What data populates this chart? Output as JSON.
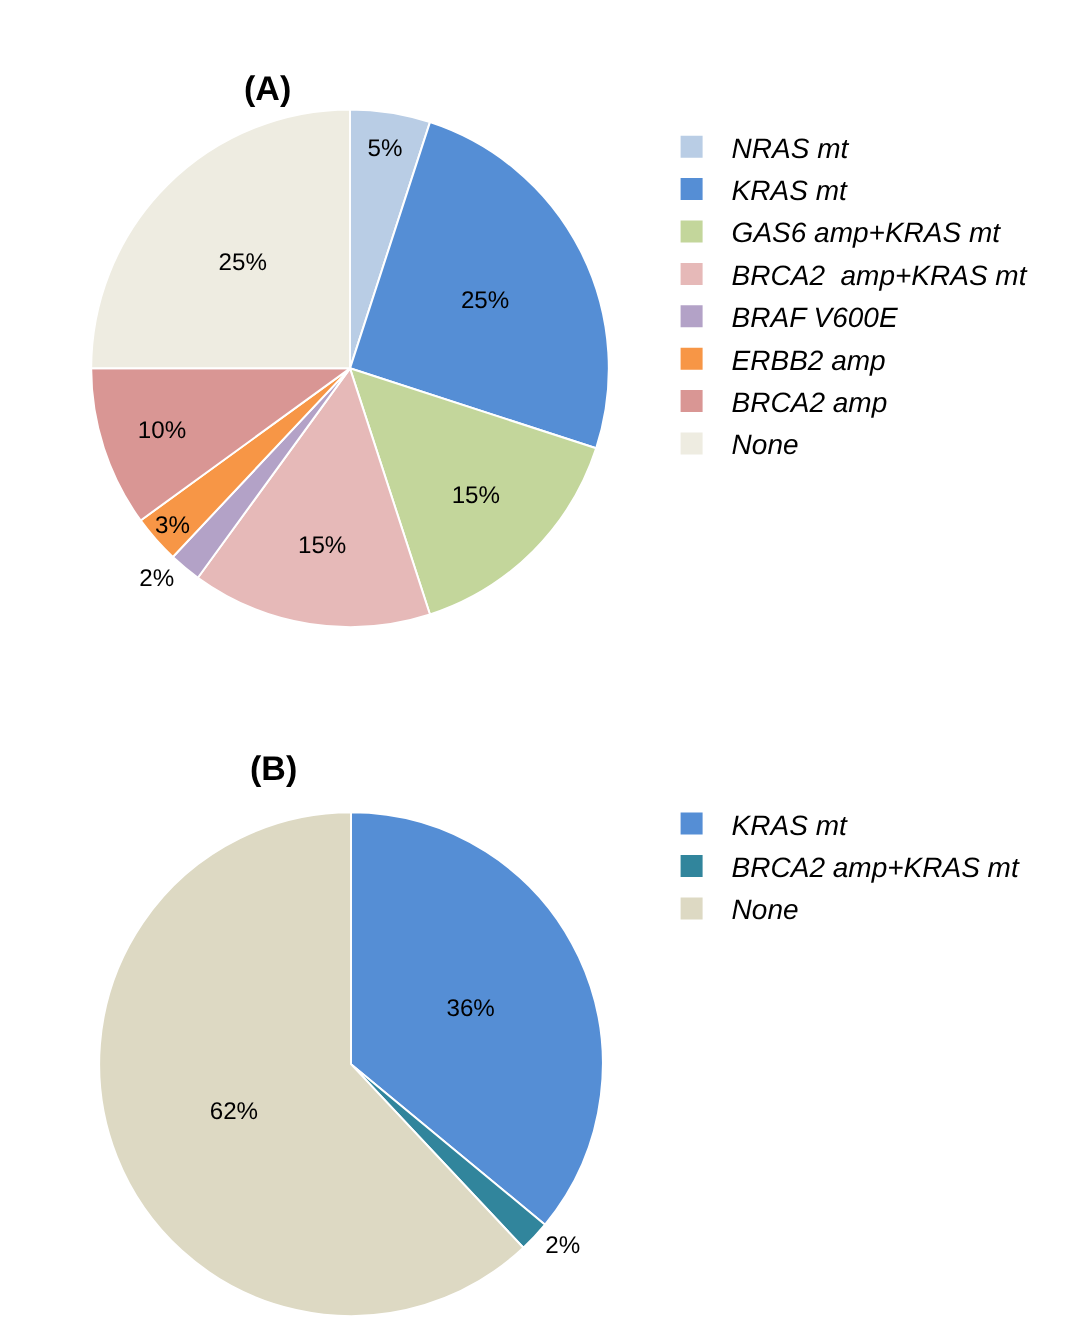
{
  "chart_data": [
    {
      "type": "pie",
      "title": "(A)",
      "categories": [
        "NRAS mt",
        "KRAS mt",
        "GAS6 amp+KRAS mt",
        "BRCA2  amp+KRAS mt",
        "BRAF V600E",
        "ERBB2 amp",
        "BRCA2 amp",
        "None"
      ],
      "values": [
        5,
        25,
        15,
        15,
        2,
        3,
        10,
        25
      ],
      "value_labels": [
        "5%",
        "25%",
        "15%",
        "15%",
        "2%",
        "3%",
        "10%",
        "25%"
      ],
      "colors": [
        "#b9cde5",
        "#558ed5",
        "#c3d69b",
        "#e6b9b8",
        "#b3a2c7",
        "#f79646",
        "#d99694",
        "#eeece1"
      ],
      "legend": "right"
    },
    {
      "type": "pie",
      "title": "(B)",
      "categories": [
        "KRAS mt",
        "BRCA2 amp+KRAS mt",
        "None"
      ],
      "values": [
        36,
        2,
        62
      ],
      "value_labels": [
        "36%",
        "2%",
        "62%"
      ],
      "colors": [
        "#558ed5",
        "#31859c",
        "#ddd9c3"
      ],
      "legend": "right"
    }
  ]
}
